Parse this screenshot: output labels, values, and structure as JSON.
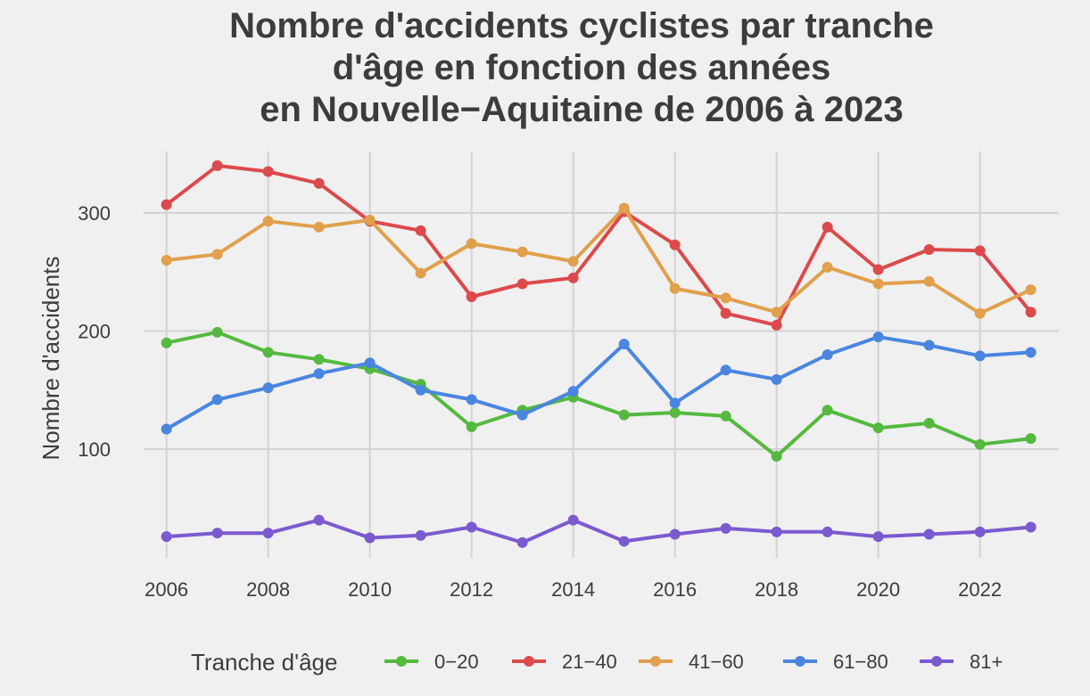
{
  "chart_data": {
    "type": "line",
    "title_lines": [
      "Nombre d'accidents cyclistes par tranche",
      "d'âge en fonction des années",
      "en Nouvelle−Aquitaine de 2006 à 2023"
    ],
    "xlabel": "",
    "ylabel": "Nombre d'accidents",
    "x": [
      2006,
      2007,
      2008,
      2009,
      2010,
      2011,
      2012,
      2013,
      2014,
      2015,
      2016,
      2017,
      2018,
      2019,
      2020,
      2021,
      2022,
      2023
    ],
    "x_ticks": [
      2006,
      2008,
      2010,
      2012,
      2014,
      2016,
      2018,
      2020,
      2022
    ],
    "x_tick_labels": [
      "2006",
      "2008",
      "2010",
      "2012",
      "2014",
      "2016",
      "2018",
      "2020",
      "2022"
    ],
    "y_ticks": [
      100,
      200,
      300
    ],
    "y_tick_labels": [
      "100",
      "200",
      "300"
    ],
    "xlim": [
      2005.55,
      2023.55
    ],
    "ylim": [
      8,
      352
    ],
    "grid": true,
    "legend_title": "Tranche d'âge",
    "legend_position": "bottom",
    "series": [
      {
        "name": "0−20",
        "color": "#55b93f",
        "values": [
          190,
          199,
          182,
          176,
          168,
          155,
          119,
          133,
          144,
          129,
          131,
          128,
          94,
          133,
          118,
          122,
          104,
          109
        ]
      },
      {
        "name": "21−40",
        "color": "#dc4a4b",
        "values": [
          307,
          340,
          335,
          325,
          293,
          285,
          229,
          240,
          245,
          301,
          273,
          215,
          205,
          288,
          252,
          269,
          268,
          216
        ]
      },
      {
        "name": "41−60",
        "color": "#e0a04c",
        "values": [
          260,
          265,
          293,
          288,
          294,
          249,
          274,
          267,
          259,
          304,
          236,
          228,
          216,
          254,
          240,
          242,
          215,
          235
        ]
      },
      {
        "name": "61−80",
        "color": "#4a86e0",
        "values": [
          117,
          142,
          152,
          164,
          173,
          150,
          142,
          129,
          149,
          189,
          139,
          167,
          159,
          180,
          195,
          188,
          179,
          182
        ]
      },
      {
        "name": "81+",
        "color": "#7b5ad0",
        "values": [
          26,
          29,
          29,
          40,
          25,
          27,
          34,
          21,
          40,
          22,
          28,
          33,
          30,
          30,
          26,
          28,
          30,
          34
        ]
      }
    ]
  }
}
